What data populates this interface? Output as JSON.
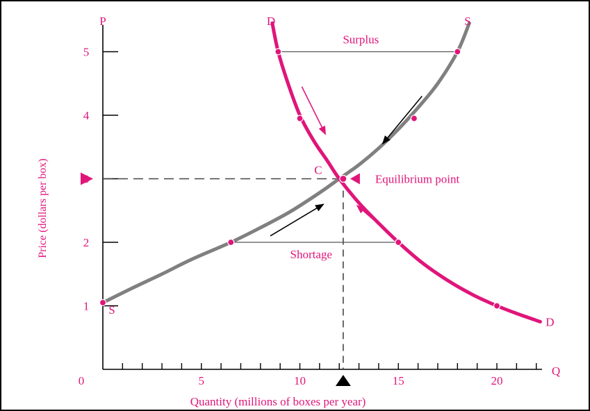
{
  "chart_data": {
    "type": "line",
    "title": "",
    "xlabel": "Quantity (millions of boxes per year)",
    "ylabel": "Price (dollars per box)",
    "x_axis_letter": "Q",
    "y_axis_letter": "P",
    "origin_label": "0",
    "xlim": [
      0,
      22.5
    ],
    "ylim": [
      0,
      5.4
    ],
    "x_ticks": [
      0,
      1,
      2,
      3,
      4,
      5,
      6,
      7,
      8,
      9,
      10,
      11,
      12,
      13,
      14,
      15,
      16,
      17,
      18,
      19,
      20,
      21,
      22
    ],
    "x_tick_labels": [
      {
        "value": 5,
        "text": "5"
      },
      {
        "value": 10,
        "text": "10"
      },
      {
        "value": 15,
        "text": "15"
      },
      {
        "value": 20,
        "text": "20"
      }
    ],
    "y_tick_labels": [
      {
        "value": 1,
        "text": "1"
      },
      {
        "value": 2,
        "text": "2"
      },
      {
        "value": 3,
        "text": "3"
      },
      {
        "value": 4,
        "text": "4"
      },
      {
        "value": 5,
        "text": "5"
      }
    ],
    "series": [
      {
        "name": "S",
        "role": "supply",
        "color": "#808080",
        "x": [
          0,
          1.5,
          3,
          4.5,
          6.5,
          8,
          9.5,
          11,
          12,
          13,
          14,
          15,
          16,
          17,
          18,
          18.6
        ],
        "y": [
          1.05,
          1.28,
          1.5,
          1.73,
          2.0,
          2.23,
          2.48,
          2.78,
          3.0,
          3.22,
          3.48,
          3.78,
          4.12,
          4.5,
          5.0,
          5.45
        ],
        "markers": [
          [
            0,
            1.05
          ],
          [
            6.5,
            2.0
          ],
          [
            15.8,
            3.95
          ],
          [
            18,
            5.0
          ]
        ],
        "start_label": "S",
        "end_label": "S"
      },
      {
        "name": "D",
        "role": "demand",
        "color": "#e0157a",
        "x": [
          8.6,
          8.9,
          9.4,
          10,
          10.7,
          11.4,
          12,
          13,
          14,
          15,
          16.2,
          17.5,
          18.8,
          20,
          21,
          22.2
        ],
        "y": [
          5.45,
          5.0,
          4.5,
          4.0,
          3.6,
          3.28,
          3.0,
          2.62,
          2.3,
          2.0,
          1.68,
          1.4,
          1.17,
          1.0,
          0.88,
          0.75
        ],
        "markers": [
          [
            8.9,
            5.0
          ],
          [
            10,
            3.95
          ],
          [
            15,
            2.0
          ],
          [
            20,
            1.0
          ]
        ],
        "start_label": "D",
        "end_label": "D"
      }
    ],
    "equilibrium": {
      "x": 12.2,
      "y": 3.0,
      "point_label": "C",
      "label": "Equilibrium point"
    },
    "surplus": {
      "price": 5,
      "x_from": 8.9,
      "x_to": 18,
      "label": "Surplus"
    },
    "shortage": {
      "price": 2,
      "x_from": 6.5,
      "x_to": 15,
      "label": "Shortage"
    },
    "arrows": [
      {
        "color": "#e0157a",
        "from": [
          10.1,
          4.45
        ],
        "to": [
          11.3,
          3.7
        ]
      },
      {
        "color": "#000000",
        "from": [
          16.2,
          4.3
        ],
        "to": [
          14.2,
          3.55
        ]
      },
      {
        "color": "#000000",
        "from": [
          8.5,
          2.1
        ],
        "to": [
          11.2,
          2.6
        ]
      },
      {
        "color": "#e0157a",
        "from": [
          14.5,
          2.15
        ],
        "to": [
          12.9,
          2.58
        ]
      }
    ],
    "grid": false,
    "legend": "none"
  },
  "colors": {
    "demand": "#e0157a",
    "supply": "#808080",
    "axis": "#000000",
    "labels": "#e0157a"
  }
}
